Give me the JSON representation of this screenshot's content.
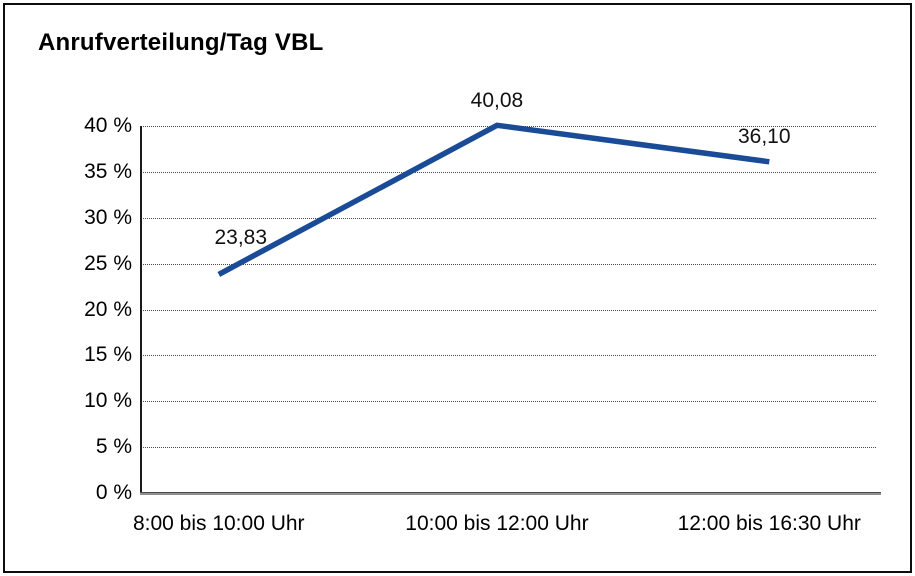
{
  "chart": {
    "title": "Anrufverteilung/Tag VBL"
  },
  "chart_data": {
    "type": "line",
    "title": "Anrufverteilung/Tag VBL",
    "categories": [
      "8:00 bis 10:00 Uhr",
      "10:00 bis 12:00 Uhr",
      "12:00 bis 16:30 Uhr"
    ],
    "values": [
      23.83,
      40.08,
      36.1
    ],
    "point_labels": [
      "23,83",
      "40,08",
      "36,10"
    ],
    "xlabel": "",
    "ylabel": "",
    "ylim": [
      0,
      40
    ],
    "y_tick_step": 5,
    "y_tick_labels": [
      "0 %",
      "5 %",
      "10 %",
      "15 %",
      "20 %",
      "25 %",
      "30 %",
      "35 %",
      "40 %"
    ],
    "grid": "horizontal dotted gridlines on",
    "legend": "none",
    "line_color": "#1a4b96"
  }
}
